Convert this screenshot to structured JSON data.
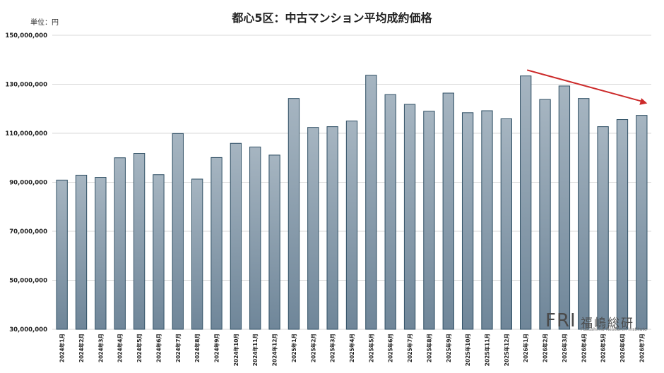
{
  "chart_data": {
    "type": "bar",
    "title": "都心5区：中古マンション平均成約価格",
    "unit_label": "単位：円",
    "ylim": [
      30000000,
      150000000
    ],
    "yticks": [
      "30,000,000",
      "50,000,000",
      "70,000,000",
      "90,000,000",
      "110,000,000",
      "130,000,000",
      "150,000,000"
    ],
    "ytick_values": [
      30000000,
      50000000,
      70000000,
      90000000,
      110000000,
      130000000,
      150000000
    ],
    "grid": true,
    "categories": [
      "2024年1月",
      "2024年2月",
      "2024年3月",
      "2024年4月",
      "2024年5月",
      "2024年6月",
      "2024年7月",
      "2024年8月",
      "2024年9月",
      "2024年10月",
      "2024年11月",
      "2024年12月",
      "2025年1月",
      "2025年2月",
      "2025年3月",
      "2025年4月",
      "2025年5月",
      "2025年6月",
      "2025年7月",
      "2025年8月",
      "2025年9月",
      "2025年10月",
      "2025年11月",
      "2025年12月",
      "2026年1月",
      "2026年2月",
      "2026年3月",
      "2026年4月",
      "2026年5月",
      "2026年6月",
      "2026年7月"
    ],
    "values": [
      90900000,
      92900000,
      92000000,
      100000000,
      101800000,
      93100000,
      109900000,
      91300000,
      100100000,
      105900000,
      104400000,
      101100000,
      124200000,
      112400000,
      112700000,
      115000000,
      133700000,
      125800000,
      121800000,
      119000000,
      126400000,
      118400000,
      119200000,
      115900000,
      133400000,
      123800000,
      129300000,
      124200000,
      112700000,
      115600000,
      117300000
    ],
    "bar_color": "#8b9eae",
    "bar_edge_color": "#2f4f64",
    "trend_arrow_color": "#cc2a2a",
    "trend_arrow": {
      "from_category": "2026年1月",
      "to_category": "2026年7月",
      "from_value": 135800000,
      "to_value": 122200000
    }
  },
  "logo": {
    "mark": "FRI",
    "name_jp": "福嶋総研",
    "name_en": "Fukushima Research Institute"
  }
}
